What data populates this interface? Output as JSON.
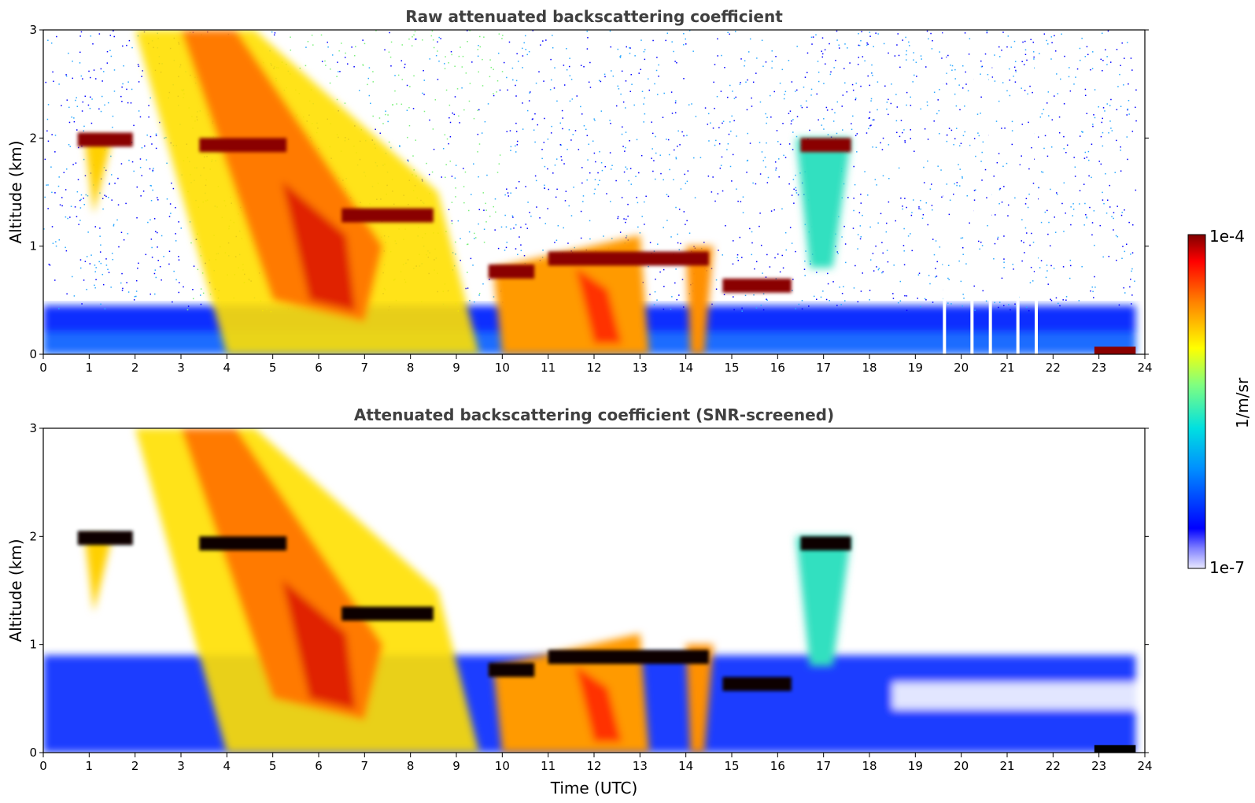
{
  "chart_data": [
    {
      "type": "heatmap",
      "title": "Raw attenuated backscattering coefficient",
      "xlabel": "",
      "ylabel": "Altitude (km)",
      "xlim": [
        0,
        24
      ],
      "ylim": [
        0,
        3
      ],
      "x_ticks": [
        "0",
        "1",
        "2",
        "3",
        "4",
        "5",
        "6",
        "7",
        "8",
        "9",
        "10",
        "11",
        "12",
        "13",
        "14",
        "15",
        "16",
        "17",
        "18",
        "19",
        "20",
        "21",
        "22",
        "23",
        "24"
      ],
      "y_ticks": [
        "0",
        "1",
        "2",
        "3"
      ],
      "grid": false,
      "screened": false
    },
    {
      "type": "heatmap",
      "title": "Attenuated backscattering coefficient (SNR-screened)",
      "xlabel": "Time (UTC)",
      "ylabel": "Altitude (km)",
      "xlim": [
        0,
        24
      ],
      "ylim": [
        0,
        3
      ],
      "x_ticks": [
        "0",
        "1",
        "2",
        "3",
        "4",
        "5",
        "6",
        "7",
        "8",
        "9",
        "10",
        "11",
        "12",
        "13",
        "14",
        "15",
        "16",
        "17",
        "18",
        "19",
        "20",
        "21",
        "22",
        "23",
        "24"
      ],
      "y_ticks": [
        "0",
        "1",
        "2",
        "3"
      ],
      "grid": false,
      "screened": true
    }
  ],
  "colorbar": {
    "label": "1/m/sr",
    "max_label": "1e-4",
    "min_label": "1e-7",
    "scale": "log",
    "colors": [
      "#e8e8ff",
      "#0000ff",
      "#00a0ff",
      "#00e0e0",
      "#80ff80",
      "#ffff00",
      "#ff8000",
      "#ff0000",
      "#800000"
    ]
  },
  "features": {
    "cloud_layers_km": [
      {
        "t0": 0.75,
        "t1": 1.95,
        "h": 2.0
      },
      {
        "t0": 3.4,
        "t1": 5.3,
        "h": 1.95
      },
      {
        "t0": 6.5,
        "t1": 8.5,
        "h": 1.3
      },
      {
        "t0": 9.7,
        "t1": 10.7,
        "h": 0.78
      },
      {
        "t0": 11.0,
        "t1": 14.5,
        "h": 0.9
      },
      {
        "t0": 14.8,
        "t1": 16.3,
        "h": 0.65
      },
      {
        "t0": 16.5,
        "t1": 17.6,
        "h": 1.95
      }
    ],
    "boundary_layer_top_km": 0.45
  }
}
